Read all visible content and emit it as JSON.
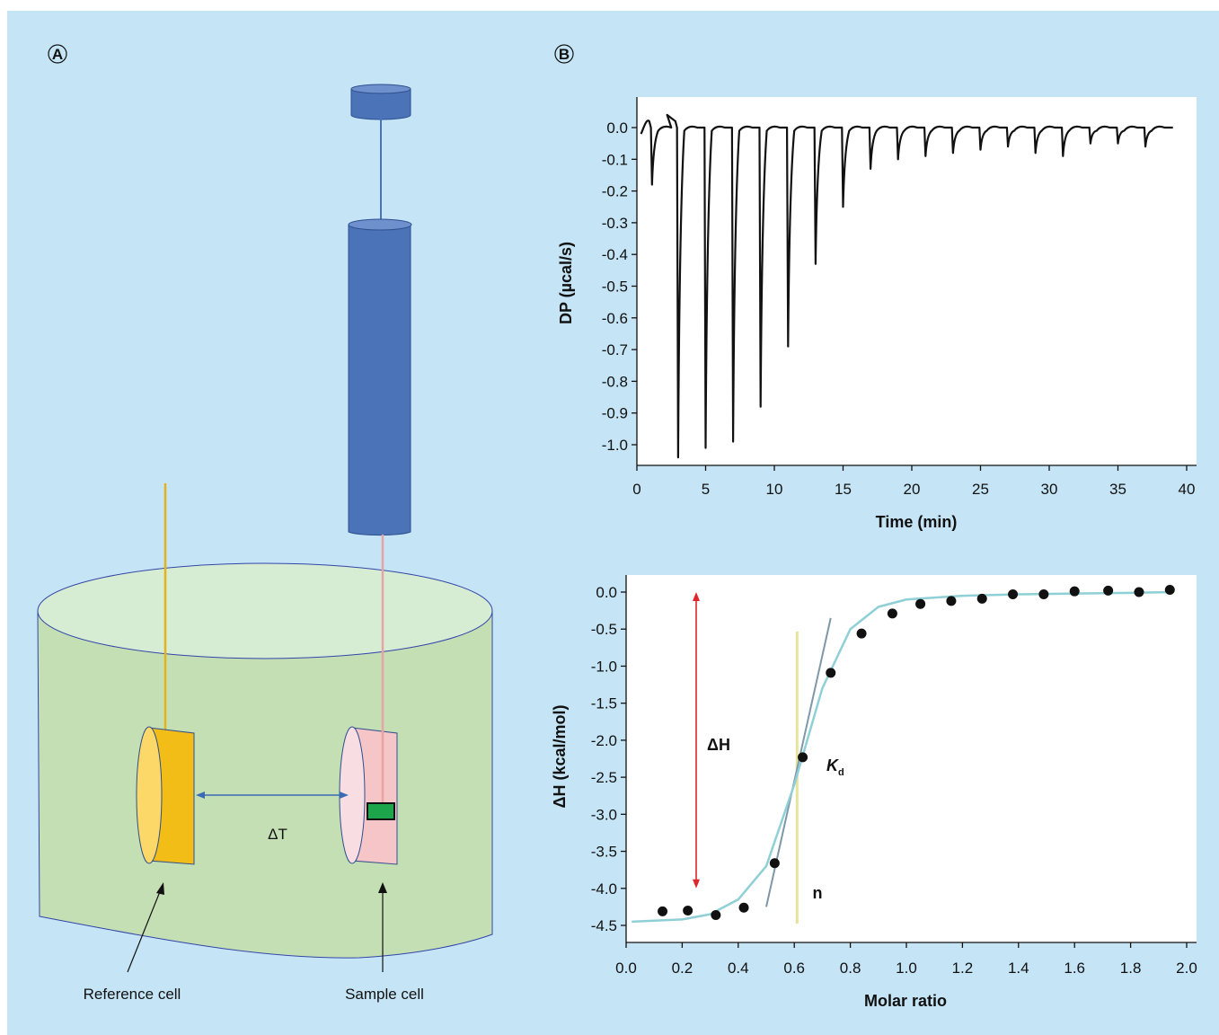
{
  "panel_a": {
    "label": "A",
    "delta_t_label": "ΔT",
    "reference_cell_label": "Reference cell",
    "sample_cell_label": "Sample cell"
  },
  "panel_b": {
    "label": "B"
  },
  "chart_data": [
    {
      "type": "line",
      "title": "",
      "xlabel": "Time (min)",
      "ylabel": "DP (µcal/s)",
      "xlim": [
        0,
        40
      ],
      "ylim": [
        -1.05,
        0.05
      ],
      "x_ticks": [
        "0",
        "5",
        "10",
        "15",
        "20",
        "25",
        "30",
        "35",
        "40"
      ],
      "y_ticks": [
        "0.0",
        "-0.1",
        "-0.2",
        "-0.3",
        "-0.4",
        "-0.5",
        "-0.6",
        "-0.7",
        "-0.8",
        "-0.9",
        "-1.0"
      ],
      "baseline": 0.0,
      "injections": [
        {
          "time": 1.1,
          "peak": -0.18
        },
        {
          "time": 3.0,
          "peak": -1.04
        },
        {
          "time": 5.0,
          "peak": -1.01
        },
        {
          "time": 7.0,
          "peak": -0.99
        },
        {
          "time": 9.0,
          "peak": -0.88
        },
        {
          "time": 11.0,
          "peak": -0.69
        },
        {
          "time": 13.0,
          "peak": -0.43
        },
        {
          "time": 15.0,
          "peak": -0.25
        },
        {
          "time": 17.0,
          "peak": -0.13
        },
        {
          "time": 19.0,
          "peak": -0.1
        },
        {
          "time": 21.0,
          "peak": -0.09
        },
        {
          "time": 23.0,
          "peak": -0.08
        },
        {
          "time": 25.0,
          "peak": -0.07
        },
        {
          "time": 27.0,
          "peak": -0.06
        },
        {
          "time": 29.0,
          "peak": -0.08
        },
        {
          "time": 31.0,
          "peak": -0.09
        },
        {
          "time": 33.0,
          "peak": -0.05
        },
        {
          "time": 35.0,
          "peak": -0.05
        },
        {
          "time": 37.0,
          "peak": -0.06
        }
      ],
      "end_time": 39.0
    },
    {
      "type": "scatter",
      "title": "",
      "xlabel": "Molar ratio",
      "ylabel": "ΔH (kcal/mol)",
      "xlim": [
        0,
        2.0
      ],
      "ylim": [
        -4.5,
        0.0
      ],
      "x_ticks": [
        "0.0",
        "0.2",
        "0.4",
        "0.6",
        "0.8",
        "1.0",
        "1.2",
        "1.4",
        "1.6",
        "1.8",
        "2.0"
      ],
      "y_ticks": [
        "0.0",
        "-0.5",
        "-1.0",
        "-1.5",
        "-2.0",
        "-2.5",
        "-3.0",
        "-3.5",
        "-4.0",
        "-4.5"
      ],
      "points": {
        "x": [
          0.13,
          0.22,
          0.32,
          0.42,
          0.53,
          0.63,
          0.73,
          0.84,
          0.95,
          1.05,
          1.16,
          1.27,
          1.38,
          1.49,
          1.6,
          1.72,
          1.83,
          1.94
        ],
        "y": [
          -4.31,
          -4.3,
          -4.36,
          -4.26,
          -3.66,
          -2.23,
          -1.09,
          -0.56,
          -0.29,
          -0.16,
          -0.12,
          -0.09,
          -0.03,
          -0.03,
          0.01,
          0.02,
          0.0,
          0.03
        ]
      },
      "fit": {
        "x": [
          0.02,
          0.2,
          0.3,
          0.4,
          0.5,
          0.6,
          0.7,
          0.8,
          0.9,
          1.0,
          1.2,
          1.4,
          1.6,
          1.8,
          1.95
        ],
        "y": [
          -4.45,
          -4.42,
          -4.35,
          -4.15,
          -3.7,
          -2.6,
          -1.3,
          -0.5,
          -0.2,
          -0.1,
          -0.05,
          -0.03,
          -0.02,
          -0.01,
          0.0
        ]
      },
      "annotations": {
        "delta_h": "ΔH",
        "kd_main": "K",
        "kd_sub": "d",
        "n": "n",
        "n_line_x": 0.61,
        "delta_h_arrow_y": [
          0.0,
          -4.0
        ],
        "slope_line": {
          "x": [
            0.5,
            0.73
          ],
          "y": [
            -4.25,
            -0.35
          ]
        }
      }
    }
  ]
}
